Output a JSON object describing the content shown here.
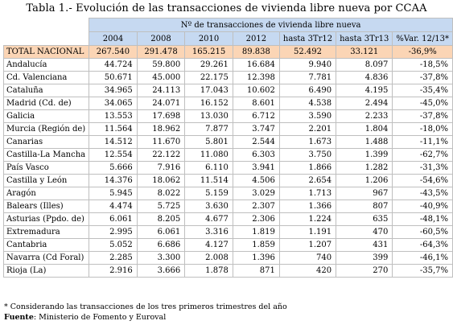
{
  "title": "Tabla 1.- Evolución de las transacciones de vivienda libre nueva por CCAA",
  "group_header": "Nº de transacciones de vivienda libre nueva",
  "columns": [
    "2004",
    "2008",
    "2010",
    "2012",
    "hasta 3Tr12",
    "hasta 3Tr13",
    "%Var. 12/13*"
  ],
  "total": {
    "name": "TOTAL NACIONAL",
    "values": [
      "267.540",
      "291.478",
      "165.215",
      "89.838",
      "52.492",
      "33.121",
      "-36,9%"
    ]
  },
  "rows": [
    {
      "name": "Andalucía",
      "values": [
        "44.724",
        "59.800",
        "29.261",
        "16.684",
        "9.940",
        "8.097",
        "-18,5%"
      ]
    },
    {
      "name": "Cd. Valenciana",
      "values": [
        "50.671",
        "45.000",
        "22.175",
        "12.398",
        "7.781",
        "4.836",
        "-37,8%"
      ]
    },
    {
      "name": "Cataluña",
      "values": [
        "34.965",
        "24.113",
        "17.043",
        "10.602",
        "6.490",
        "4.195",
        "-35,4%"
      ]
    },
    {
      "name": "Madrid (Cd. de)",
      "values": [
        "34.065",
        "24.071",
        "16.152",
        "8.601",
        "4.538",
        "2.494",
        "-45,0%"
      ]
    },
    {
      "name": "Galicia",
      "values": [
        "13.553",
        "17.698",
        "13.030",
        "6.712",
        "3.590",
        "2.233",
        "-37,8%"
      ]
    },
    {
      "name": "Murcia (Región de)",
      "values": [
        "11.564",
        "18.962",
        "7.877",
        "3.747",
        "2.201",
        "1.804",
        "-18,0%"
      ]
    },
    {
      "name": "Canarias",
      "values": [
        "14.512",
        "11.670",
        "5.801",
        "2.544",
        "1.673",
        "1.488",
        "-11,1%"
      ]
    },
    {
      "name": "Castilla-La Mancha",
      "values": [
        "12.554",
        "22.122",
        "11.080",
        "6.303",
        "3.750",
        "1.399",
        "-62,7%"
      ]
    },
    {
      "name": "País Vasco",
      "values": [
        "5.666",
        "7.916",
        "6.110",
        "3.941",
        "1.866",
        "1.282",
        "-31,3%"
      ]
    },
    {
      "name": "Castilla y León",
      "values": [
        "14.376",
        "18.062",
        "11.514",
        "4.506",
        "2.654",
        "1.206",
        "-54,6%"
      ]
    },
    {
      "name": "Aragón",
      "values": [
        "5.945",
        "8.022",
        "5.159",
        "3.029",
        "1.713",
        "967",
        "-43,5%"
      ]
    },
    {
      "name": "Balears (Illes)",
      "values": [
        "4.474",
        "5.725",
        "3.630",
        "2.307",
        "1.366",
        "807",
        "-40,9%"
      ]
    },
    {
      "name": "Asturias (Ppdo. de)",
      "values": [
        "6.061",
        "8.205",
        "4.677",
        "2.306",
        "1.224",
        "635",
        "-48,1%"
      ]
    },
    {
      "name": "Extremadura",
      "values": [
        "2.995",
        "6.061",
        "3.316",
        "1.819",
        "1.191",
        "470",
        "-60,5%"
      ]
    },
    {
      "name": "Cantabria",
      "values": [
        "5.052",
        "6.686",
        "4.127",
        "1.859",
        "1.207",
        "431",
        "-64,3%"
      ]
    },
    {
      "name": "Navarra (Cd Foral)",
      "values": [
        "2.285",
        "3.300",
        "2.008",
        "1.396",
        "740",
        "399",
        "-46,1%"
      ]
    },
    {
      "name": "Rioja (La)",
      "values": [
        "2.916",
        "3.666",
        "1.878",
        "871",
        "420",
        "270",
        "-35,7%"
      ]
    }
  ],
  "footnote": "* Considerando las transacciones de los tres primeros trimestres del año",
  "source_label": "Fuente",
  "source_text": ": Ministerio de Fomento y Euroval"
}
